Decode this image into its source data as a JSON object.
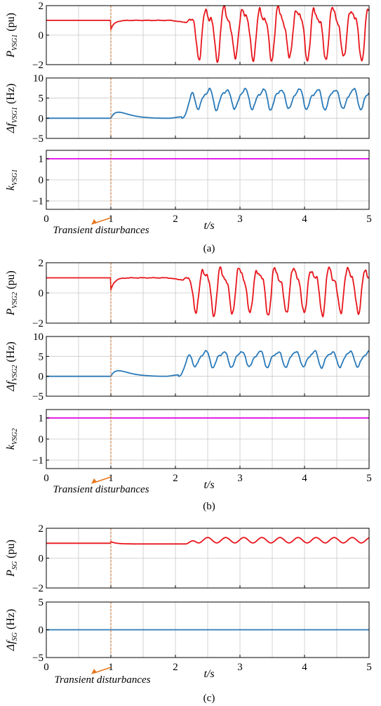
{
  "figure": {
    "annotation": "Transient disturbances",
    "x_axis_label": "t/s",
    "colors": {
      "power": "#e8161c",
      "frequency": "#2a7ab9",
      "k": "#e100e6",
      "grid": "#c8c8c8",
      "disturbance_line": "#d2691e",
      "arrow": "#e8761c"
    }
  },
  "chart_data": [
    {
      "type": "line",
      "group": "a",
      "caption": "(a)",
      "ylabel_main": "P",
      "ylabel_sub": "VSG1",
      "ylabel_unit": "(pu)",
      "xlim": [
        0,
        5
      ],
      "ylim": [
        -2,
        2
      ],
      "yticks": [
        "2",
        "0",
        "−2"
      ],
      "series": [
        {
          "kind": "power_osc",
          "steady_value": 1.0,
          "disturbance_t": 1.0,
          "dip_to": 0.4,
          "instability_onset_t": 2.15,
          "osc_amplitude": 1.6,
          "osc_period": 0.28
        }
      ]
    },
    {
      "type": "line",
      "group": "a",
      "ylabel_main": "Δf",
      "ylabel_sub": "VSG1",
      "ylabel_unit": "(Hz)",
      "xlim": [
        0,
        5
      ],
      "ylim": [
        -5,
        10
      ],
      "yticks": [
        "10",
        "5",
        "0",
        "−5"
      ],
      "series": [
        {
          "kind": "freq_osc",
          "steady_value": 0.0,
          "disturbance_t": 1.0,
          "bump_peak": 1.5,
          "instability_onset_t": 2.1,
          "osc_mean": 5.0,
          "osc_amplitude": 2.5,
          "osc_period": 0.28
        }
      ]
    },
    {
      "type": "line",
      "group": "a",
      "show_xticks": true,
      "ylabel_main": "k",
      "ylabel_sub": "VSG1",
      "ylabel_unit": "",
      "xlim": [
        0,
        5
      ],
      "ylim": [
        -1.4,
        1.4
      ],
      "yticks": [
        "1",
        "0",
        "−1"
      ],
      "xticks": [
        "0",
        "1",
        "2",
        "3",
        "4",
        "5"
      ],
      "series": [
        {
          "kind": "constant",
          "value": 1.0
        }
      ]
    },
    {
      "type": "line",
      "group": "b",
      "caption": "(b)",
      "ylabel_main": "P",
      "ylabel_sub": "VSG2",
      "ylabel_unit": "(pu)",
      "xlim": [
        0,
        5
      ],
      "ylim": [
        -2,
        2
      ],
      "yticks": [
        "2",
        "0",
        "−2"
      ],
      "series": [
        {
          "kind": "power_osc",
          "steady_value": 1.0,
          "disturbance_t": 1.0,
          "dip_to": 0.2,
          "instability_onset_t": 2.1,
          "osc_amplitude": 1.4,
          "osc_period": 0.28
        }
      ]
    },
    {
      "type": "line",
      "group": "b",
      "ylabel_main": "Δf",
      "ylabel_sub": "VSG2",
      "ylabel_unit": "(Hz)",
      "xlim": [
        0,
        5
      ],
      "ylim": [
        -5,
        10
      ],
      "yticks": [
        "10",
        "5",
        "0",
        "−5"
      ],
      "series": [
        {
          "kind": "freq_osc",
          "steady_value": 0.0,
          "disturbance_t": 1.0,
          "bump_peak": 1.4,
          "instability_onset_t": 2.05,
          "osc_mean": 4.5,
          "osc_amplitude": 2.0,
          "osc_period": 0.28
        }
      ]
    },
    {
      "type": "line",
      "group": "b",
      "show_xticks": true,
      "ylabel_main": "k",
      "ylabel_sub": "VSG2",
      "ylabel_unit": "",
      "xlim": [
        0,
        5
      ],
      "ylim": [
        -1.4,
        1.4
      ],
      "yticks": [
        "1",
        "0",
        "−1"
      ],
      "xticks": [
        "0",
        "1",
        "2",
        "3",
        "4",
        "5"
      ],
      "series": [
        {
          "kind": "constant",
          "value": 1.0
        }
      ]
    },
    {
      "type": "line",
      "group": "c",
      "caption": "(c)",
      "ylabel_main": "P",
      "ylabel_sub": "SG",
      "ylabel_unit": "(pu)",
      "xlim": [
        0,
        5
      ],
      "ylim": [
        -2,
        2
      ],
      "yticks": [
        "2",
        "0",
        "−2"
      ],
      "series": [
        {
          "kind": "power_small",
          "steady_value": 1.0,
          "disturbance_t": 1.0,
          "post_value": 0.95,
          "ripple_onset_t": 2.15,
          "ripple_mean": 1.2,
          "ripple_amplitude": 0.18,
          "osc_period": 0.28
        }
      ]
    },
    {
      "type": "line",
      "group": "c",
      "show_xticks": true,
      "ylabel_main": "Δf",
      "ylabel_sub": "SG",
      "ylabel_unit": "(Hz)",
      "xlim": [
        0,
        5
      ],
      "ylim": [
        -5,
        5
      ],
      "yticks": [
        "5",
        "0",
        "−5"
      ],
      "xticks": [
        "0",
        "1",
        "2",
        "3",
        "4",
        "5"
      ],
      "series": [
        {
          "kind": "constant",
          "value": 0.0
        }
      ]
    }
  ]
}
